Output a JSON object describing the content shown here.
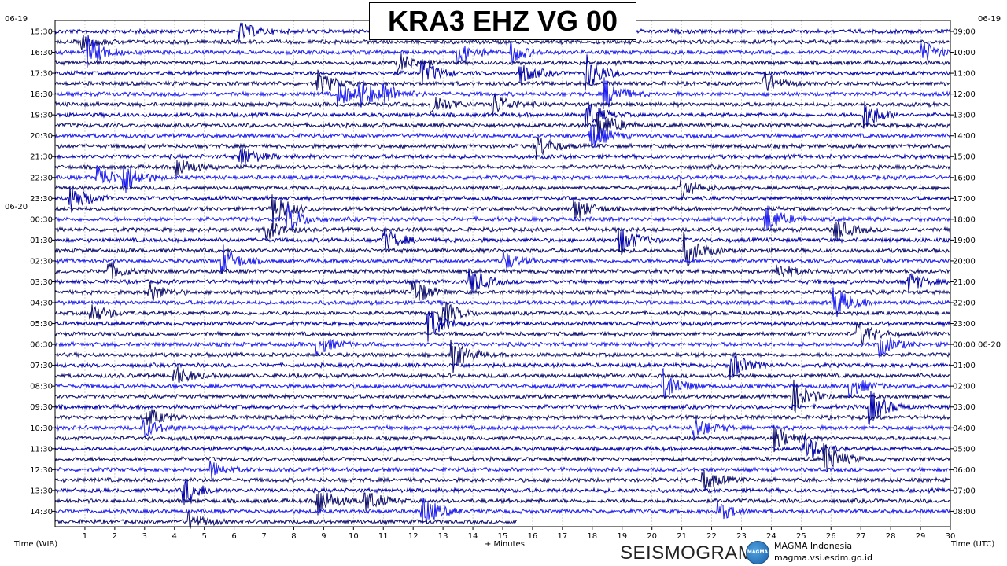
{
  "title": "KRA3 EHZ VG 00",
  "dates": {
    "left_top": "06-19",
    "left_mid": "06-20",
    "right_top": "06-19"
  },
  "axis": {
    "x_label": "+ Minutes",
    "left_label": "Time (WIB)",
    "right_label": "Time (UTC)"
  },
  "logo": {
    "word": "SEISMOGRAM",
    "badge": "MAGMA",
    "org": "MAGMA Indonesia",
    "url": "magma.vsi.esdm.go.id"
  },
  "colors": {
    "trace_dark": "#0d0d6b",
    "trace_navy": "#0000a8",
    "trace_blue": "#1b1bf0",
    "gridline": "#c8c8c8",
    "background": "#ffffff"
  },
  "chart_data": {
    "type": "line",
    "x_ticks": [
      "1",
      "2",
      "3",
      "4",
      "5",
      "6",
      "7",
      "8",
      "9",
      "10",
      "11",
      "12",
      "13",
      "14",
      "15",
      "16",
      "17",
      "18",
      "19",
      "20",
      "21",
      "22",
      "23",
      "24",
      "25",
      "26",
      "27",
      "28",
      "29",
      "30"
    ],
    "xlim": [
      0,
      30
    ],
    "left_ticks": [
      "15:30",
      "16:30",
      "17:30",
      "18:30",
      "19:30",
      "20:30",
      "21:30",
      "22:30",
      "23:30",
      "00:30",
      "01:30",
      "02:30",
      "03:30",
      "04:30",
      "05:30",
      "06:30",
      "07:30",
      "08:30",
      "09:30",
      "10:30",
      "11:30",
      "12:30",
      "13:30",
      "14:30"
    ],
    "right_ticks": [
      "09:00",
      "10:00",
      "11:00",
      "12:00",
      "13:00",
      "14:00",
      "15:00",
      "16:00",
      "17:00",
      "18:00",
      "19:00",
      "20:00",
      "21:00",
      "22:00",
      "23:00",
      "00:00 06-20",
      "01:00",
      "02:00",
      "03:00",
      "04:00",
      "05:00",
      "06:00",
      "07:00",
      "08:00"
    ],
    "trace_rows": 48,
    "last_row_end_minute": 15.5,
    "grid": true,
    "events": [
      {
        "row": 0,
        "minute": 6.2,
        "amp": 0.7
      },
      {
        "row": 1,
        "minute": 0.9,
        "amp": 0.6
      },
      {
        "row": 2,
        "minute": 1.1,
        "amp": 1.3
      },
      {
        "row": 2,
        "minute": 13.5,
        "amp": 0.9
      },
      {
        "row": 2,
        "minute": 15.3,
        "amp": 0.8
      },
      {
        "row": 2,
        "minute": 29.0,
        "amp": 1.0
      },
      {
        "row": 3,
        "minute": 11.5,
        "amp": 0.8
      },
      {
        "row": 4,
        "minute": 12.3,
        "amp": 1.1
      },
      {
        "row": 4,
        "minute": 15.6,
        "amp": 0.8
      },
      {
        "row": 4,
        "minute": 17.8,
        "amp": 1.4
      },
      {
        "row": 5,
        "minute": 8.8,
        "amp": 1.0
      },
      {
        "row": 5,
        "minute": 23.7,
        "amp": 1.0
      },
      {
        "row": 6,
        "minute": 9.5,
        "amp": 1.0
      },
      {
        "row": 6,
        "minute": 10.2,
        "amp": 1.1
      },
      {
        "row": 6,
        "minute": 11.0,
        "amp": 0.8
      },
      {
        "row": 6,
        "minute": 18.4,
        "amp": 1.3
      },
      {
        "row": 7,
        "minute": 12.6,
        "amp": 1.0
      },
      {
        "row": 7,
        "minute": 14.7,
        "amp": 0.9
      },
      {
        "row": 8,
        "minute": 17.8,
        "amp": 1.2
      },
      {
        "row": 8,
        "minute": 27.1,
        "amp": 1.3
      },
      {
        "row": 9,
        "minute": 18.2,
        "amp": 1.3
      },
      {
        "row": 10,
        "minute": 17.9,
        "amp": 1.3
      },
      {
        "row": 11,
        "minute": 16.1,
        "amp": 1.0
      },
      {
        "row": 12,
        "minute": 6.2,
        "amp": 1.0
      },
      {
        "row": 13,
        "minute": 4.1,
        "amp": 0.8
      },
      {
        "row": 14,
        "minute": 1.4,
        "amp": 1.1
      },
      {
        "row": 14,
        "minute": 2.3,
        "amp": 1.3
      },
      {
        "row": 15,
        "minute": 21.0,
        "amp": 0.8
      },
      {
        "row": 16,
        "minute": 0.5,
        "amp": 1.2
      },
      {
        "row": 17,
        "minute": 7.3,
        "amp": 1.5
      },
      {
        "row": 17,
        "minute": 17.4,
        "amp": 0.9
      },
      {
        "row": 18,
        "minute": 7.8,
        "amp": 1.1
      },
      {
        "row": 18,
        "minute": 23.8,
        "amp": 1.2
      },
      {
        "row": 19,
        "minute": 7.1,
        "amp": 0.8
      },
      {
        "row": 19,
        "minute": 26.1,
        "amp": 1.0
      },
      {
        "row": 20,
        "minute": 11.0,
        "amp": 1.0
      },
      {
        "row": 20,
        "minute": 18.9,
        "amp": 1.4
      },
      {
        "row": 21,
        "minute": 21.1,
        "amp": 1.4
      },
      {
        "row": 22,
        "minute": 5.6,
        "amp": 1.2
      },
      {
        "row": 22,
        "minute": 15.0,
        "amp": 0.8
      },
      {
        "row": 23,
        "minute": 1.8,
        "amp": 0.7
      },
      {
        "row": 23,
        "minute": 24.2,
        "amp": 0.7
      },
      {
        "row": 24,
        "minute": 13.9,
        "amp": 1.1
      },
      {
        "row": 24,
        "minute": 28.5,
        "amp": 1.0
      },
      {
        "row": 25,
        "minute": 3.1,
        "amp": 0.9
      },
      {
        "row": 25,
        "minute": 12.0,
        "amp": 1.1
      },
      {
        "row": 26,
        "minute": 26.1,
        "amp": 1.4
      },
      {
        "row": 27,
        "minute": 1.2,
        "amp": 0.8
      },
      {
        "row": 27,
        "minute": 12.9,
        "amp": 1.2
      },
      {
        "row": 28,
        "minute": 12.5,
        "amp": 1.3
      },
      {
        "row": 29,
        "minute": 26.9,
        "amp": 1.1
      },
      {
        "row": 30,
        "minute": 8.8,
        "amp": 0.8
      },
      {
        "row": 30,
        "minute": 27.6,
        "amp": 1.0
      },
      {
        "row": 31,
        "minute": 13.3,
        "amp": 1.3
      },
      {
        "row": 32,
        "minute": 22.6,
        "amp": 1.2
      },
      {
        "row": 33,
        "minute": 4.0,
        "amp": 0.8
      },
      {
        "row": 34,
        "minute": 20.4,
        "amp": 1.3
      },
      {
        "row": 34,
        "minute": 26.6,
        "amp": 0.9
      },
      {
        "row": 35,
        "minute": 24.7,
        "amp": 1.4
      },
      {
        "row": 36,
        "minute": 27.3,
        "amp": 1.4
      },
      {
        "row": 37,
        "minute": 3.1,
        "amp": 0.8
      },
      {
        "row": 38,
        "minute": 21.4,
        "amp": 1.0
      },
      {
        "row": 38,
        "minute": 3.0,
        "amp": 0.7
      },
      {
        "row": 39,
        "minute": 24.1,
        "amp": 1.0
      },
      {
        "row": 40,
        "minute": 25.1,
        "amp": 1.2
      },
      {
        "row": 41,
        "minute": 25.8,
        "amp": 1.3
      },
      {
        "row": 42,
        "minute": 5.2,
        "amp": 0.7
      },
      {
        "row": 43,
        "minute": 21.7,
        "amp": 0.9
      },
      {
        "row": 44,
        "minute": 4.3,
        "amp": 1.2
      },
      {
        "row": 45,
        "minute": 8.8,
        "amp": 1.2
      },
      {
        "row": 45,
        "minute": 10.4,
        "amp": 0.9
      },
      {
        "row": 46,
        "minute": 12.3,
        "amp": 1.3
      },
      {
        "row": 46,
        "minute": 22.2,
        "amp": 0.8
      },
      {
        "row": 47,
        "minute": 4.5,
        "amp": 0.7
      }
    ]
  }
}
